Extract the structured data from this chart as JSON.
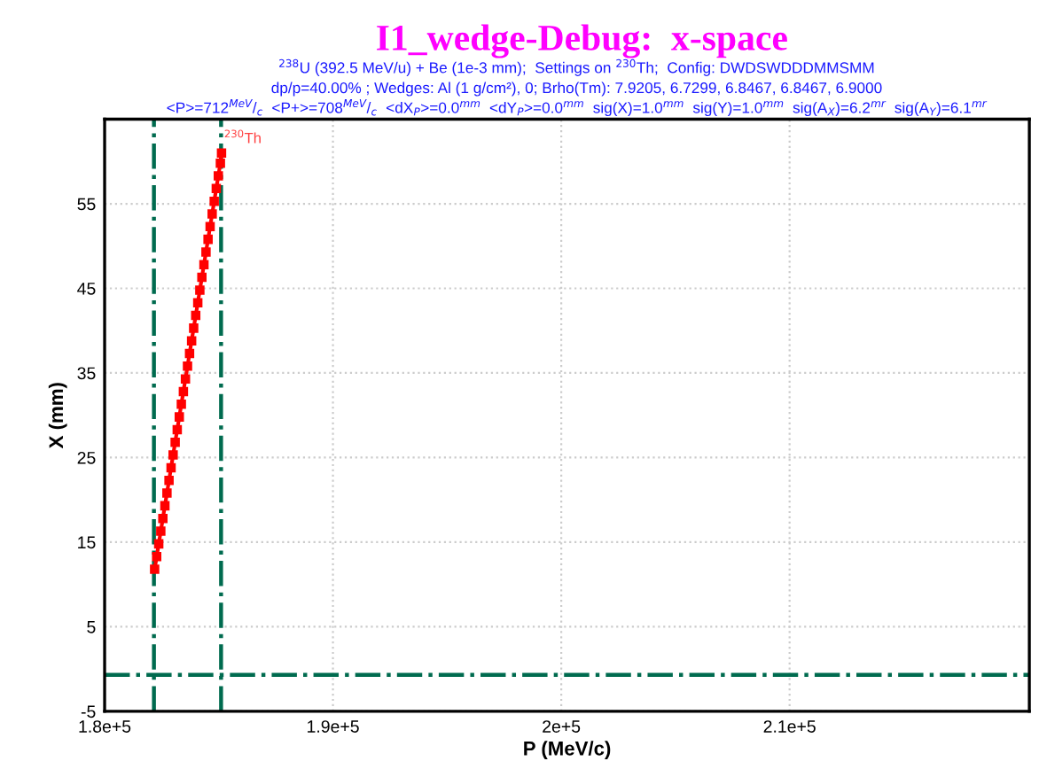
{
  "chart_data": {
    "type": "line",
    "title": "I1_wedge-Debug:  x-space",
    "subtitle": [
      "$^{238}$U (392.5 MeV/u) + Be (1e-3 mm);  Settings on $^{230}$Th;  Config: DWDSWDDDMMSMM",
      "dp/p=40.00% ; Wedges: Al (1 g/cm²), 0; Brho(Tm): 7.9205, 6.7299, 6.8467, 6.8467, 6.9000",
      "<P>=712$^{MeV}$/$_{c}$  <P+>=708$^{MeV}$/$_{c}$  <dX$_{P}$>=0.0$^{mm}$  <dY$_{P}$>=0.0$^{mm}$  sig(X)=1.0$^{mm}$  sig(Y)=1.0$^{mm}$  sig(A$_{X}$)=6.2$^{mr}$  sig(A$_{Y}$)=6.1$^{mr}$"
    ],
    "xlabel": "P (MeV/c)",
    "ylabel": "X (mm)",
    "series": [
      {
        "color": "#ff0000",
        "x": [
          182190,
          182280,
          182370,
          182460,
          182550,
          182640,
          182730,
          182820,
          182910,
          183000,
          183090,
          183180,
          183270,
          183360,
          183450,
          183540,
          183630,
          183720,
          183810,
          183900,
          183990,
          184080,
          184170,
          184260,
          184350,
          184440,
          184530,
          184620,
          184710,
          184800,
          184890,
          184980,
          185070,
          185120
        ],
        "values": [
          11.8,
          13.3,
          14.8,
          16.3,
          17.8,
          19.3,
          20.8,
          22.3,
          23.8,
          25.3,
          26.8,
          28.3,
          29.8,
          31.3,
          32.8,
          34.3,
          35.8,
          37.3,
          38.8,
          40.3,
          41.8,
          43.3,
          44.8,
          46.3,
          47.8,
          49.3,
          50.8,
          52.3,
          53.8,
          55.3,
          56.8,
          58.3,
          59.8,
          61.0
        ]
      }
    ],
    "annotations": [
      {
        "text": "$^{230}$Th",
        "x": 185120,
        "y": 61.0
      }
    ],
    "marker": "square",
    "line_style": "solid",
    "grid": true,
    "xlim": [
      180000,
      220500
    ],
    "xticks": [
      {
        "value": 180000,
        "label": "1.8e+5"
      },
      {
        "value": 190000,
        "label": "1.9e+5"
      },
      {
        "value": 200000,
        "label": "2e+5"
      },
      {
        "value": 210000,
        "label": "2.1e+5"
      }
    ],
    "ylim": [
      -5,
      65
    ],
    "yticks": [
      {
        "value": -5,
        "label": "-5"
      },
      5,
      15,
      25,
      35,
      45,
      55
    ],
    "ref_lines": [
      {
        "axis": "x",
        "value": 182160,
        "color": "#006b4f",
        "line_style": "dashdot"
      },
      {
        "axis": "x",
        "value": 185100,
        "color": "#006b4f",
        "line_style": "dashdot"
      },
      {
        "axis": "y",
        "value": -0.7,
        "color": "#006b4f",
        "line_style": "dashdot"
      }
    ]
  }
}
